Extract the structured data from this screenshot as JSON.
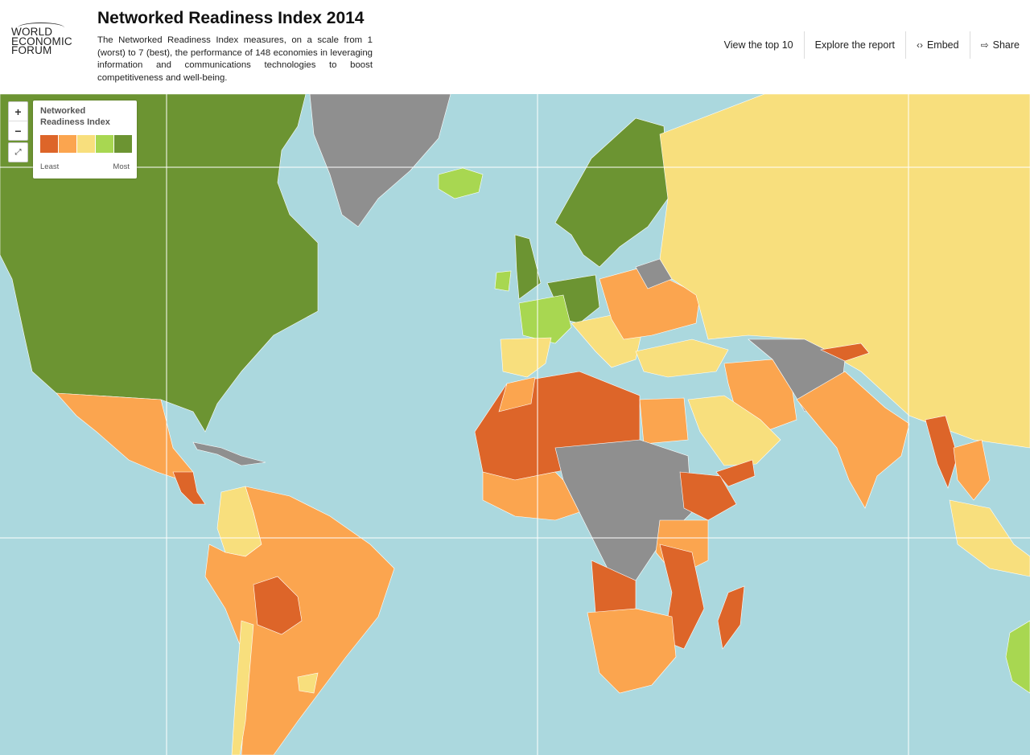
{
  "header": {
    "logo_lines": [
      "WORLD",
      "ECONOMIC",
      "FORUM"
    ],
    "title": "Networked Readiness Index 2014",
    "description": "The Networked Readiness Index measures, on a scale from 1 (worst) to 7 (best), the performance of 148 economies in leveraging information and communications technologies to boost competitiveness and well-being."
  },
  "nav": {
    "top10": "View the top 10",
    "report": "Explore the report",
    "embed": "Embed",
    "share": "Share"
  },
  "map_controls": {
    "zoom_in": "+",
    "zoom_out": "−",
    "fullscreen": "⤢"
  },
  "legend": {
    "title": "Networked Readiness Index",
    "least": "Least",
    "most": "Most",
    "colors": [
      "#dd6529",
      "#fba54f",
      "#f8df7d",
      "#a8d751",
      "#6c9432"
    ]
  },
  "map_colors": {
    "ocean": "#abd8de",
    "no_data": "#8f8f8f",
    "graticule": "#ffffff"
  }
}
